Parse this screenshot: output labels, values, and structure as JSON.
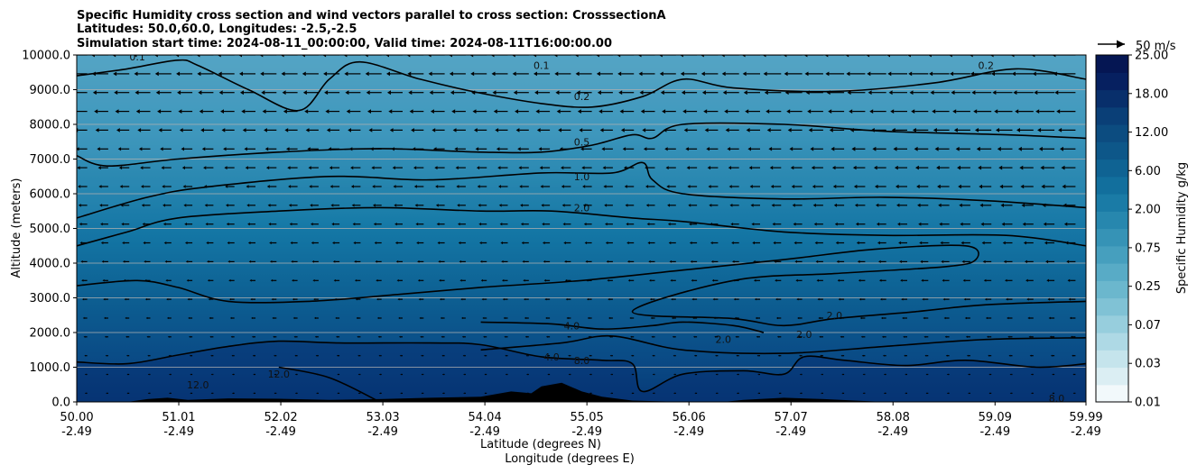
{
  "chart_data": {
    "type": "contour",
    "title_lines": [
      "Specific Humidity cross section and wind vectors parallel to cross section: CrosssectionA",
      "Latitudes: 50.0,60.0, Longitudes: -2.5,-2.5",
      "Simulation start time: 2024-08-11_00:00:00, Valid time: 2024-08-11T16:00:00.00"
    ],
    "xlabel_lat": "Latitude (degrees N)",
    "xlabel_lon": "Longitude (degrees E)",
    "ylabel": "Altitude (meters)",
    "xlim": [
      50.0,
      59.99
    ],
    "ylim": [
      0,
      10000
    ],
    "x_ticks": [
      {
        "lat": "50.00",
        "lon": "-2.49"
      },
      {
        "lat": "51.01",
        "lon": "-2.49"
      },
      {
        "lat": "52.02",
        "lon": "-2.49"
      },
      {
        "lat": "53.03",
        "lon": "-2.49"
      },
      {
        "lat": "54.04",
        "lon": "-2.49"
      },
      {
        "lat": "55.05",
        "lon": "-2.49"
      },
      {
        "lat": "56.06",
        "lon": "-2.49"
      },
      {
        "lat": "57.07",
        "lon": "-2.49"
      },
      {
        "lat": "58.08",
        "lon": "-2.49"
      },
      {
        "lat": "59.09",
        "lon": "-2.49"
      },
      {
        "lat": "59.99",
        "lon": "-2.49"
      }
    ],
    "y_ticks": [
      "0.0",
      "1000.0",
      "2000.0",
      "3000.0",
      "4000.0",
      "5000.0",
      "6000.0",
      "7000.0",
      "8000.0",
      "9000.0",
      "10000.0"
    ],
    "grid_y": true,
    "colorbar": {
      "label": "Specific Humidity g/kg",
      "tick_labels": [
        "0.01",
        "0.03",
        "0.07",
        "0.25",
        "0.75",
        "2.00",
        "6.00",
        "12.00",
        "18.00",
        "25.00"
      ],
      "colors": [
        "#f2f9fb",
        "#dbeef3",
        "#c5e4ec",
        "#aed9e5",
        "#97cedd",
        "#80c2d5",
        "#6bb7cd",
        "#58abc6",
        "#469fbe",
        "#3693b6",
        "#2787ae",
        "#1a7ba6",
        "#126f9d",
        "#0f6393",
        "#0d5789",
        "#0c4c80",
        "#0a3f77",
        "#082f6b",
        "#062060",
        "#051653"
      ]
    },
    "quiver_key": {
      "label": "50 m/s",
      "value": 50
    },
    "contour_levels": [
      "0.1",
      "0.2",
      "0.5",
      "1.0",
      "2.0",
      "4.0",
      "8.0",
      "12.0"
    ],
    "contours": [
      {
        "level": 0.2,
        "points": [
          [
            50.0,
            9400
          ],
          [
            50.5,
            9600
          ],
          [
            51.0,
            9850
          ],
          [
            51.2,
            9700
          ],
          [
            51.7,
            9000
          ],
          [
            52.2,
            8400
          ],
          [
            52.5,
            9300
          ],
          [
            52.8,
            9800
          ],
          [
            53.4,
            9300
          ],
          [
            54.0,
            8900
          ],
          [
            54.6,
            8600
          ],
          [
            55.1,
            8500
          ],
          [
            55.6,
            8800
          ],
          [
            56.0,
            9300
          ],
          [
            56.5,
            9050
          ],
          [
            57.5,
            8950
          ],
          [
            58.5,
            9200
          ],
          [
            59.3,
            9600
          ],
          [
            59.99,
            9300
          ]
        ]
      },
      {
        "level": 0.5,
        "points": [
          [
            50.0,
            7100
          ],
          [
            50.3,
            6800
          ],
          [
            51.0,
            7000
          ],
          [
            52.0,
            7200
          ],
          [
            53.0,
            7300
          ],
          [
            54.0,
            7200
          ],
          [
            54.6,
            7200
          ],
          [
            55.1,
            7400
          ],
          [
            55.5,
            7700
          ],
          [
            55.7,
            7600
          ],
          [
            56.0,
            8000
          ],
          [
            57.0,
            8000
          ],
          [
            58.0,
            7800
          ],
          [
            59.2,
            7700
          ],
          [
            59.99,
            7600
          ]
        ]
      },
      {
        "level": 1.0,
        "points": [
          [
            50.0,
            5300
          ],
          [
            50.7,
            5900
          ],
          [
            51.3,
            6200
          ],
          [
            52.5,
            6500
          ],
          [
            53.5,
            6400
          ],
          [
            54.6,
            6600
          ],
          [
            55.3,
            6600
          ],
          [
            55.6,
            6900
          ],
          [
            55.7,
            6400
          ],
          [
            56.0,
            6000
          ],
          [
            57.0,
            5850
          ],
          [
            58.0,
            5900
          ],
          [
            59.0,
            5800
          ],
          [
            59.99,
            5600
          ]
        ]
      },
      {
        "level": 2.0,
        "points": [
          [
            50.0,
            4500
          ],
          [
            50.5,
            4900
          ],
          [
            51.0,
            5300
          ],
          [
            52.0,
            5500
          ],
          [
            53.0,
            5600
          ],
          [
            54.0,
            5500
          ],
          [
            54.7,
            5500
          ],
          [
            55.5,
            5300
          ],
          [
            56.0,
            5200
          ],
          [
            57.0,
            4900
          ],
          [
            58.0,
            4800
          ],
          [
            59.2,
            4800
          ],
          [
            59.99,
            4500
          ]
        ]
      },
      {
        "level": 2.0,
        "points": [
          [
            50.0,
            3350
          ],
          [
            50.6,
            3500
          ],
          [
            51.0,
            3300
          ],
          [
            51.5,
            2900
          ],
          [
            52.3,
            2900
          ],
          [
            53.2,
            3100
          ],
          [
            54.0,
            3300
          ],
          [
            55.0,
            3500
          ],
          [
            56.0,
            3800
          ],
          [
            57.0,
            4100
          ],
          [
            57.9,
            4400
          ],
          [
            58.8,
            4500
          ],
          [
            58.9,
            4100
          ],
          [
            58.6,
            3900
          ],
          [
            57.5,
            3700
          ],
          [
            56.5,
            3500
          ],
          [
            55.5,
            2600
          ],
          [
            56.5,
            2400
          ],
          [
            57.0,
            2200
          ],
          [
            57.5,
            2400
          ],
          [
            58.3,
            2600
          ],
          [
            59.0,
            2800
          ],
          [
            59.99,
            2900
          ]
        ]
      },
      {
        "level": 4.0,
        "points": [
          [
            54.0,
            2300
          ],
          [
            54.7,
            2250
          ],
          [
            55.2,
            2100
          ],
          [
            55.7,
            2200
          ],
          [
            56.0,
            2300
          ],
          [
            56.5,
            2200
          ],
          [
            56.8,
            2000
          ]
        ]
      },
      {
        "level": 4.0,
        "points": [
          [
            54.0,
            1500
          ],
          [
            54.8,
            1700
          ],
          [
            55.3,
            1900
          ],
          [
            56.0,
            1500
          ],
          [
            57.0,
            1400
          ],
          [
            58.0,
            1600
          ],
          [
            59.0,
            1800
          ],
          [
            59.99,
            1850
          ]
        ]
      },
      {
        "level": 8.0,
        "points": [
          [
            50.0,
            1150
          ],
          [
            50.5,
            1100
          ],
          [
            51.0,
            1350
          ],
          [
            51.5,
            1600
          ],
          [
            52.0,
            1750
          ],
          [
            52.6,
            1700
          ],
          [
            53.5,
            1700
          ],
          [
            54.0,
            1650
          ],
          [
            54.6,
            1300
          ],
          [
            55.2,
            1200
          ],
          [
            55.5,
            1100
          ],
          [
            55.6,
            300
          ],
          [
            56.0,
            800
          ],
          [
            56.6,
            900
          ],
          [
            57.0,
            800
          ],
          [
            57.2,
            1300
          ],
          [
            57.6,
            1200
          ],
          [
            58.2,
            1050
          ],
          [
            58.8,
            1200
          ],
          [
            59.5,
            1000
          ],
          [
            59.99,
            1100
          ]
        ]
      },
      {
        "level": 12.0,
        "points": [
          [
            52.0,
            1000
          ],
          [
            52.5,
            700
          ],
          [
            53.0,
            0
          ]
        ]
      }
    ],
    "contour_labels": [
      {
        "text": "0.1",
        "x": 50.6,
        "y": 9950
      },
      {
        "text": "0.1",
        "x": 54.6,
        "y": 9700
      },
      {
        "text": "0.2",
        "x": 55.0,
        "y": 8800
      },
      {
        "text": "0.2",
        "x": 59.0,
        "y": 9700
      },
      {
        "text": "0.5",
        "x": 55.0,
        "y": 7500
      },
      {
        "text": "1.0",
        "x": 55.0,
        "y": 6500
      },
      {
        "text": "2.0",
        "x": 55.0,
        "y": 5600
      },
      {
        "text": "2.0",
        "x": 57.5,
        "y": 2500
      },
      {
        "text": "2.0",
        "x": 57.2,
        "y": 1950
      },
      {
        "text": "2.0",
        "x": 56.4,
        "y": 1800
      },
      {
        "text": "4.0",
        "x": 54.9,
        "y": 2200
      },
      {
        "text": "4.0",
        "x": 54.7,
        "y": 1300
      },
      {
        "text": "8.0",
        "x": 55.0,
        "y": 1200
      },
      {
        "text": "8.0",
        "x": 59.7,
        "y": 100
      },
      {
        "text": "12.0",
        "x": 51.2,
        "y": 500
      },
      {
        "text": "12.0",
        "x": 52.0,
        "y": 800
      }
    ],
    "terrain": [
      [
        50.0,
        0
      ],
      [
        50.5,
        0
      ],
      [
        50.7,
        80
      ],
      [
        50.9,
        120
      ],
      [
        51.1,
        60
      ],
      [
        51.5,
        100
      ],
      [
        52.0,
        90
      ],
      [
        52.5,
        60
      ],
      [
        53.0,
        80
      ],
      [
        53.5,
        120
      ],
      [
        54.0,
        150
      ],
      [
        54.3,
        300
      ],
      [
        54.5,
        250
      ],
      [
        54.6,
        450
      ],
      [
        54.8,
        550
      ],
      [
        55.0,
        300
      ],
      [
        55.2,
        150
      ],
      [
        55.5,
        40
      ],
      [
        56.0,
        0
      ],
      [
        56.4,
        0
      ],
      [
        56.6,
        60
      ],
      [
        57.0,
        120
      ],
      [
        57.4,
        80
      ],
      [
        57.7,
        40
      ],
      [
        58.0,
        0
      ],
      [
        59.99,
        0
      ]
    ],
    "wind_u_profile": [
      [
        0,
        0
      ],
      [
        1000,
        -2
      ],
      [
        2000,
        -4
      ],
      [
        3000,
        -6
      ],
      [
        4000,
        -8
      ],
      [
        5000,
        -10
      ],
      [
        6000,
        -12
      ],
      [
        7000,
        -14
      ],
      [
        8000,
        -18
      ],
      [
        9000,
        -22
      ],
      [
        10000,
        -25
      ]
    ]
  }
}
